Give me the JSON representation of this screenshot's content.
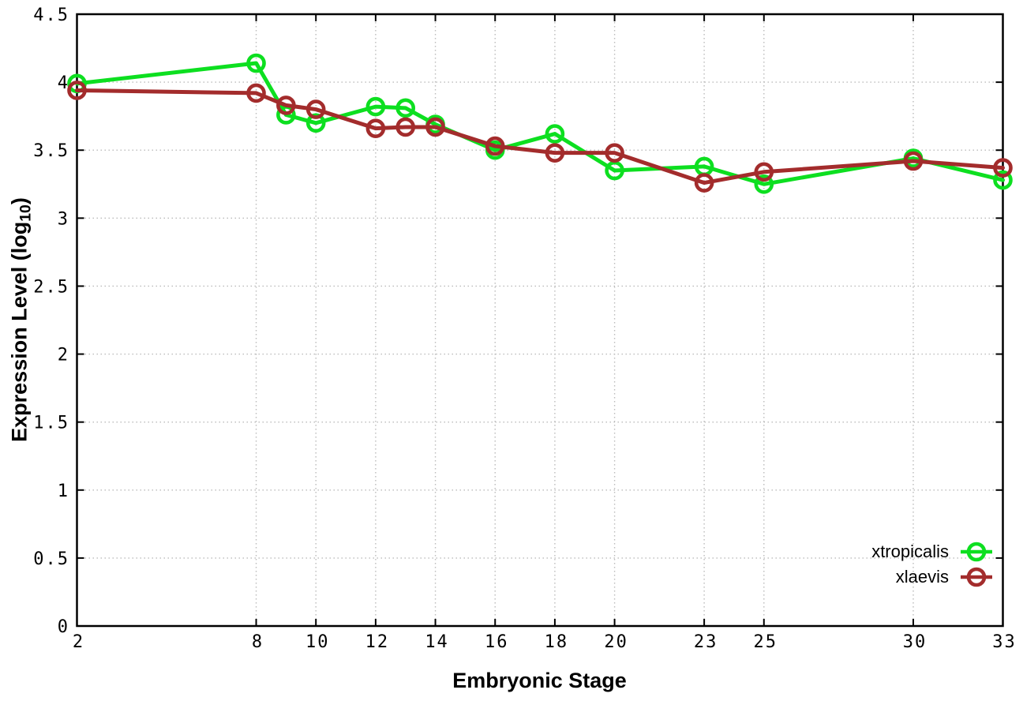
{
  "chart_data": {
    "type": "line",
    "title": "",
    "xlabel": "Embryonic Stage",
    "ylabel": "Expression Level (log10)",
    "ylabel_rich": {
      "prefix": "Expression Level (log",
      "subscript": "10",
      "suffix": ")"
    },
    "xlim": [
      2,
      33
    ],
    "ylim": [
      0,
      4.5
    ],
    "grid": true,
    "grid_style": "dotted",
    "legend_position": "inside-bottom-right",
    "x": [
      2,
      8,
      9,
      10,
      12,
      13,
      14,
      16,
      18,
      20,
      23,
      25,
      30,
      33
    ],
    "xtick_values": [
      2,
      8,
      10,
      12,
      14,
      16,
      18,
      20,
      23,
      25,
      30,
      33
    ],
    "xtick_labels": [
      "2",
      "8",
      "10",
      "12",
      "14",
      "16",
      "18",
      "20",
      "23",
      "25",
      "30",
      "33"
    ],
    "ytick_values": [
      0,
      0.5,
      1,
      1.5,
      2,
      2.5,
      3,
      3.5,
      4,
      4.5
    ],
    "ytick_labels": [
      "0",
      "0.5",
      "1",
      "1.5",
      "2",
      "2.5",
      "3",
      "3.5",
      "4",
      "4.5"
    ],
    "series": [
      {
        "name": "xtropicalis",
        "color": "#0ddf20",
        "marker": "open-circle",
        "values": [
          3.99,
          4.14,
          3.76,
          3.7,
          3.82,
          3.81,
          3.69,
          3.5,
          3.62,
          3.35,
          3.38,
          3.25,
          3.44,
          3.28
        ]
      },
      {
        "name": "xlaevis",
        "color": "#a32c2c",
        "marker": "open-circle",
        "values": [
          3.94,
          3.92,
          3.83,
          3.8,
          3.66,
          3.67,
          3.67,
          3.53,
          3.48,
          3.48,
          3.26,
          3.34,
          3.42,
          3.37
        ]
      }
    ]
  },
  "styles": {
    "background": "#ffffff",
    "axis_color": "#000000",
    "grid_color": "#bbbbbb",
    "text_color": "#000000"
  }
}
